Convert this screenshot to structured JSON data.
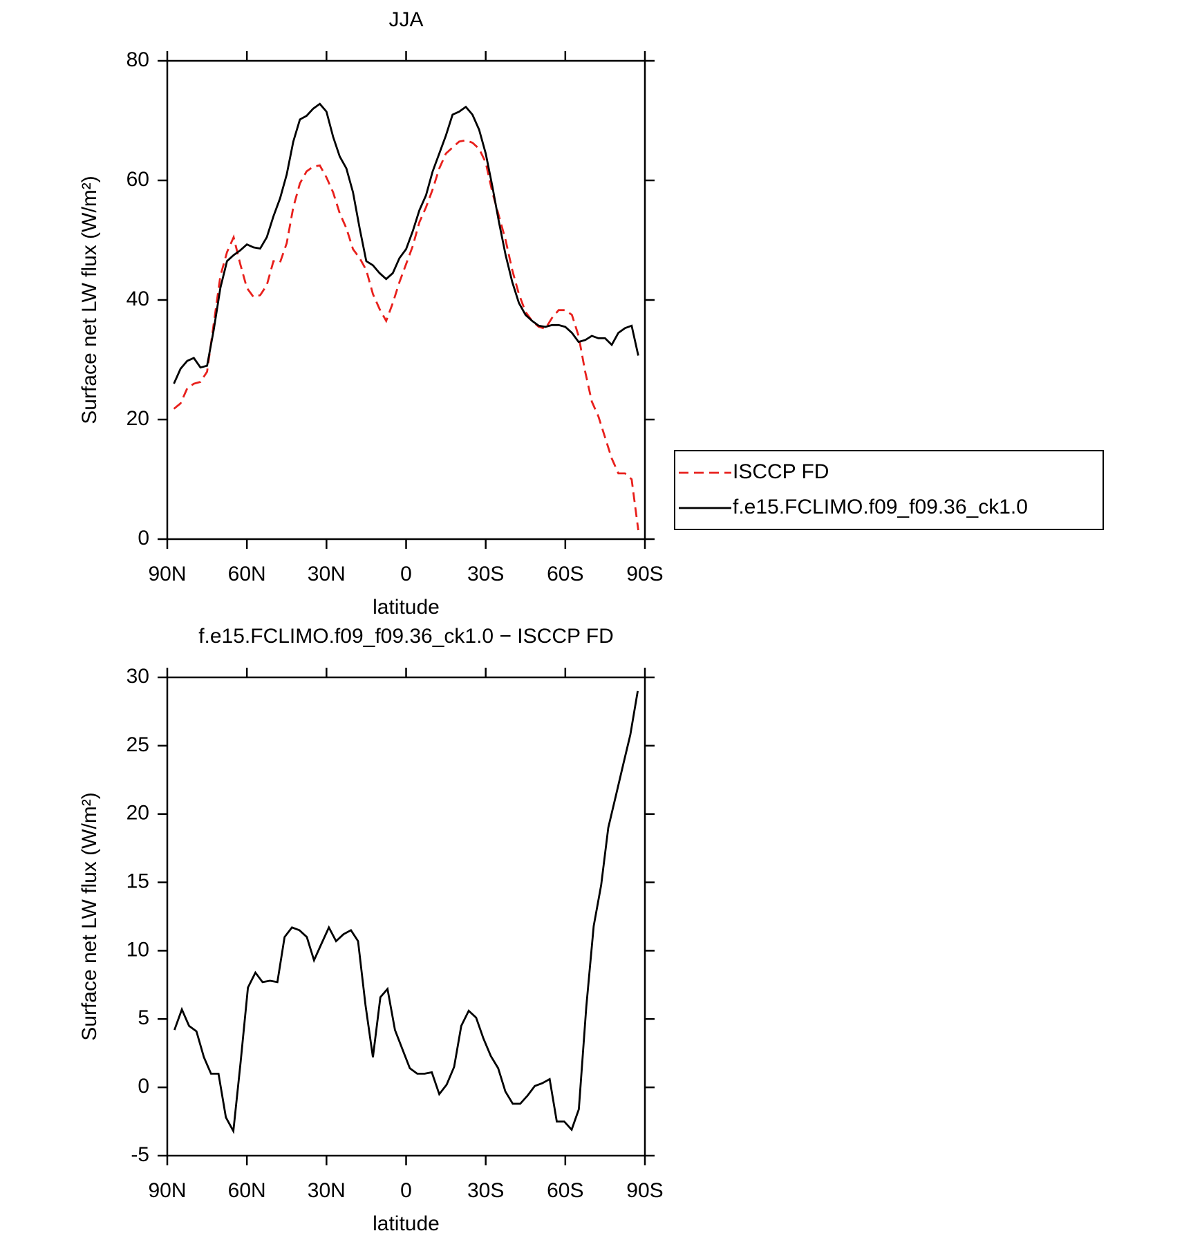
{
  "chart_data": [
    {
      "type": "line",
      "title": "JJA",
      "xlabel": "latitude",
      "ylabel": "Surface net LW flux (W/m²)",
      "x": [
        87.5,
        85,
        82.5,
        80,
        77.5,
        75,
        72.5,
        70,
        67.5,
        65,
        62.5,
        60,
        57.5,
        55,
        52.5,
        50,
        47.5,
        45,
        42.5,
        40,
        37.5,
        35,
        32.5,
        30,
        27.5,
        25,
        22.5,
        20,
        17.5,
        15,
        12.5,
        10,
        7.5,
        5,
        2.5,
        0,
        -2.5,
        -5,
        -7.5,
        -10,
        -12.5,
        -15,
        -17.5,
        -20,
        -22.5,
        -25,
        -27.5,
        -30,
        -32.5,
        -35,
        -37.5,
        -40,
        -42.5,
        -45,
        -47.5,
        -50,
        -52.5,
        -55,
        -57.5,
        -60,
        -62.5,
        -65,
        -67.5,
        -70,
        -72.5,
        -75,
        -77.5,
        -80,
        -82.5,
        -85,
        -87.5
      ],
      "series": [
        {
          "name": "ISCCP FD",
          "color": "#e8201c",
          "dash": true,
          "values": [
            21.8,
            22.7,
            25.2,
            26,
            26.3,
            28,
            36,
            44,
            48,
            50.5,
            46,
            42,
            40.5,
            40.8,
            42.5,
            46.5,
            46.3,
            49.5,
            55.5,
            59.5,
            61.5,
            62.3,
            62.5,
            60.5,
            58,
            54.5,
            52,
            48.5,
            47,
            45,
            41,
            38.5,
            36.5,
            39.5,
            43,
            46,
            49,
            53,
            55.5,
            58.5,
            62,
            64.5,
            65.5,
            66.5,
            66.7,
            66.3,
            65.3,
            63,
            58,
            54,
            50,
            45,
            41,
            38,
            36.5,
            35.5,
            35.2,
            37,
            38.3,
            38.3,
            37.5,
            34,
            28,
            23,
            20.5,
            17,
            13.5,
            11,
            11,
            10,
            1.5
          ]
        },
        {
          "name": "f.e15.FCLIMO.f09_f09.36_ck1.0",
          "color": "#000000",
          "dash": false,
          "values": [
            26,
            28.5,
            29.8,
            30.3,
            28.7,
            29,
            35,
            42,
            46.5,
            47.5,
            48.3,
            49.3,
            48.8,
            48.6,
            50.5,
            54,
            57,
            61,
            66.5,
            70.2,
            70.8,
            72,
            72.8,
            71.5,
            67.3,
            64,
            62,
            58,
            52,
            46.5,
            45.8,
            44.5,
            43.5,
            44.5,
            47,
            48.5,
            51.5,
            55,
            57.5,
            61.5,
            64.5,
            67.5,
            71,
            71.5,
            72.3,
            71,
            68.5,
            64.5,
            59,
            53,
            47.5,
            43,
            39.5,
            37.5,
            36.5,
            35.7,
            35.5,
            35.8,
            35.8,
            35.5,
            34.5,
            33,
            33.3,
            34,
            33.6,
            33.6,
            32.5,
            34.5,
            35.3,
            35.7,
            30.7
          ]
        }
      ],
      "xlim": [
        90,
        -90
      ],
      "xticks": [
        {
          "value": 90,
          "label": "90N"
        },
        {
          "value": 60,
          "label": "60N"
        },
        {
          "value": 30,
          "label": "30N"
        },
        0,
        {
          "value": -30,
          "label": "30S"
        },
        {
          "value": -60,
          "label": "60S"
        },
        {
          "value": -90,
          "label": "90S"
        }
      ],
      "ylim": [
        0,
        80
      ],
      "yticks": [
        0,
        20,
        40,
        60,
        80
      ],
      "legend": "right"
    },
    {
      "type": "line",
      "title": "f.e15.FCLIMO.f09_f09.36_ck1.0 − ISCCP FD",
      "xlabel": "latitude",
      "ylabel": "Surface net LW flux (W/m²)",
      "x": [
        87.3,
        84.5,
        81.8,
        79.0,
        76.2,
        73.5,
        70.7,
        67.9,
        65.1,
        62.4,
        59.6,
        56.8,
        54.1,
        51.3,
        48.5,
        45.8,
        43.0,
        40.2,
        37.4,
        34.7,
        31.9,
        29.1,
        26.4,
        23.6,
        20.8,
        18.1,
        15.3,
        12.5,
        9.7,
        7.0,
        4.2,
        1.4,
        -1.4,
        -4.2,
        -7.0,
        -9.7,
        -12.5,
        -15.3,
        -18.1,
        -20.8,
        -23.6,
        -26.4,
        -29.1,
        -31.9,
        -34.7,
        -37.4,
        -40.2,
        -43.0,
        -45.8,
        -48.5,
        -51.3,
        -54.1,
        -56.8,
        -59.6,
        -62.4,
        -65.1,
        -67.9,
        -70.7,
        -73.5,
        -76.2,
        -79.0,
        -81.8,
        -84.5,
        -87.3
      ],
      "values": [
        4.2,
        5.7,
        4.5,
        4.1,
        2.2,
        1,
        1,
        -2.2,
        -3.2,
        1.8,
        7.3,
        8.4,
        7.7,
        7.8,
        7.7,
        11,
        11.7,
        11.5,
        11,
        9.3,
        10.5,
        11.7,
        10.7,
        11.2,
        11.5,
        10.7,
        6,
        2.2,
        6.6,
        7.2,
        4.2,
        2.8,
        1.4,
        1,
        1,
        1.1,
        -0.5,
        0.2,
        1.5,
        4.5,
        5.6,
        5.1,
        3.6,
        2.3,
        1.4,
        -0.3,
        -1.2,
        -1.2,
        -0.6,
        0.1,
        0.3,
        0.6,
        -2.5,
        -2.5,
        -3.1,
        -1.6,
        5.9,
        11.8,
        14.8,
        19,
        21.3,
        23.6,
        25.8,
        29
      ],
      "color": "#000000",
      "xlim": [
        90,
        -90
      ],
      "xticks": [
        {
          "value": 90,
          "label": "90N"
        },
        {
          "value": 60,
          "label": "60N"
        },
        {
          "value": 30,
          "label": "30N"
        },
        0,
        {
          "value": -30,
          "label": "30S"
        },
        {
          "value": -60,
          "label": "60S"
        },
        {
          "value": -90,
          "label": "90S"
        }
      ],
      "ylim": [
        -5,
        30
      ],
      "yticks": [
        -5,
        0,
        5,
        10,
        15,
        20,
        25,
        30
      ]
    }
  ]
}
